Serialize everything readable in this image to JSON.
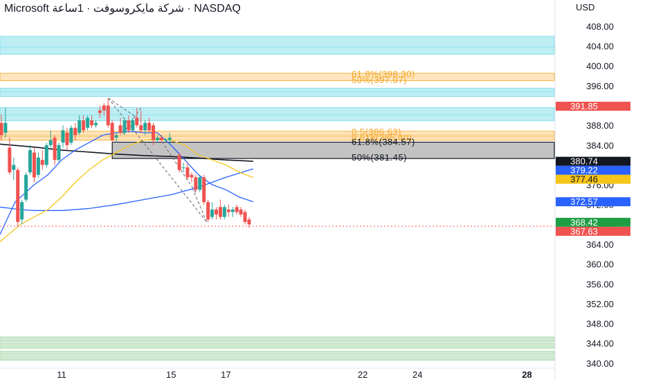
{
  "header": {
    "title": "Microsoft شركة مايكروسوفت · 1ساعة · NASDAQ",
    "currency": "USD"
  },
  "colors": {
    "up": "#26a69a",
    "down": "#ef5350",
    "cyan_zone": "#b2ebf2",
    "orange_zone": "#ffe0b2",
    "green_zone": "#c8e6c9",
    "gray_zone": "#bdbdbd",
    "fib_orange": "#f5a623",
    "ma_black": "#131722",
    "ma_blue": "#2962ff",
    "ma_yellow": "#f5c518",
    "current_price_line": "#ef5350"
  },
  "chart_data": {
    "type": "candlestick",
    "ylim": [
      339.0,
      410.5
    ],
    "xlim": [
      8.75,
      29.0
    ],
    "y_ticks": [
      "408.00",
      "404.00",
      "400.00",
      "396.00",
      "392.00",
      "388.00",
      "384.00",
      "380.00",
      "376.00",
      "372.00",
      "368.00",
      "364.00",
      "360.00",
      "356.00",
      "352.00",
      "348.00",
      "344.00",
      "340.00"
    ],
    "x_ticks": [
      {
        "label": "11",
        "x": 11,
        "bold": false
      },
      {
        "label": "15",
        "x": 15,
        "bold": false
      },
      {
        "label": "17",
        "x": 17,
        "bold": false
      },
      {
        "label": "22",
        "x": 22,
        "bold": false
      },
      {
        "label": "24",
        "x": 24,
        "bold": false
      },
      {
        "label": "28",
        "x": 28,
        "bold": true
      }
    ],
    "candles": [
      {
        "x": 8.8,
        "o": 388.5,
        "h": 390.2,
        "l": 385.0,
        "c": 386.0
      },
      {
        "x": 8.95,
        "o": 386.5,
        "h": 391.5,
        "l": 385.5,
        "c": 388.5
      },
      {
        "x": 9.1,
        "o": 383.5,
        "h": 385.5,
        "l": 378.0,
        "c": 378.5
      },
      {
        "x": 9.25,
        "o": 379.0,
        "h": 381.5,
        "l": 377.0,
        "c": 380.0
      },
      {
        "x": 9.4,
        "o": 379.0,
        "h": 379.5,
        "l": 367.5,
        "c": 368.5
      },
      {
        "x": 9.55,
        "o": 369.0,
        "h": 373.0,
        "l": 368.0,
        "c": 372.5
      },
      {
        "x": 9.7,
        "o": 373.0,
        "h": 378.5,
        "l": 372.5,
        "c": 378.0
      },
      {
        "x": 9.85,
        "o": 378.5,
        "h": 384.0,
        "l": 378.0,
        "c": 383.0
      },
      {
        "x": 10.0,
        "o": 382.5,
        "h": 383.5,
        "l": 376.5,
        "c": 377.5
      },
      {
        "x": 10.15,
        "o": 378.0,
        "h": 382.5,
        "l": 377.5,
        "c": 381.5
      },
      {
        "x": 10.3,
        "o": 381.0,
        "h": 383.0,
        "l": 379.0,
        "c": 380.0
      },
      {
        "x": 10.45,
        "o": 380.0,
        "h": 384.5,
        "l": 379.5,
        "c": 384.0
      },
      {
        "x": 10.6,
        "o": 384.0,
        "h": 387.0,
        "l": 383.5,
        "c": 385.0
      },
      {
        "x": 10.75,
        "o": 385.5,
        "h": 386.0,
        "l": 380.0,
        "c": 381.0
      },
      {
        "x": 10.9,
        "o": 381.0,
        "h": 384.5,
        "l": 380.5,
        "c": 384.0
      },
      {
        "x": 11.05,
        "o": 384.5,
        "h": 388.0,
        "l": 383.5,
        "c": 387.0
      },
      {
        "x": 11.2,
        "o": 386.5,
        "h": 387.5,
        "l": 383.0,
        "c": 384.0
      },
      {
        "x": 11.35,
        "o": 384.5,
        "h": 388.0,
        "l": 384.0,
        "c": 387.5
      },
      {
        "x": 11.5,
        "o": 387.5,
        "h": 388.5,
        "l": 385.0,
        "c": 386.0
      },
      {
        "x": 11.65,
        "o": 386.5,
        "h": 390.0,
        "l": 386.0,
        "c": 389.0
      },
      {
        "x": 11.8,
        "o": 389.0,
        "h": 390.0,
        "l": 386.5,
        "c": 387.0
      },
      {
        "x": 11.95,
        "o": 387.5,
        "h": 390.0,
        "l": 387.0,
        "c": 389.5
      },
      {
        "x": 12.1,
        "o": 389.0,
        "h": 390.0,
        "l": 387.5,
        "c": 388.0
      },
      {
        "x": 12.25,
        "o": 388.0,
        "h": 389.0,
        "l": 387.5,
        "c": 388.5
      },
      {
        "x": 12.4,
        "o": 391.0,
        "h": 392.0,
        "l": 389.5,
        "c": 390.5
      },
      {
        "x": 12.55,
        "o": 392.0,
        "h": 392.5,
        "l": 390.0,
        "c": 391.0
      },
      {
        "x": 12.7,
        "o": 392.0,
        "h": 393.5,
        "l": 387.5,
        "c": 388.0
      },
      {
        "x": 12.85,
        "o": 388.5,
        "h": 389.0,
        "l": 384.5,
        "c": 385.0
      },
      {
        "x": 13.0,
        "o": 385.5,
        "h": 386.5,
        "l": 384.5,
        "c": 386.0
      },
      {
        "x": 13.15,
        "o": 388.0,
        "h": 389.5,
        "l": 386.0,
        "c": 386.5
      },
      {
        "x": 13.3,
        "o": 386.5,
        "h": 389.5,
        "l": 386.0,
        "c": 389.0
      },
      {
        "x": 13.45,
        "o": 389.0,
        "h": 390.0,
        "l": 386.5,
        "c": 387.0
      },
      {
        "x": 13.6,
        "o": 387.0,
        "h": 389.5,
        "l": 386.5,
        "c": 389.0
      },
      {
        "x": 13.75,
        "o": 389.5,
        "h": 391.5,
        "l": 387.5,
        "c": 388.0
      },
      {
        "x": 13.9,
        "o": 388.0,
        "h": 391.0,
        "l": 386.5,
        "c": 387.0
      },
      {
        "x": 14.05,
        "o": 387.0,
        "h": 389.0,
        "l": 386.0,
        "c": 388.5
      },
      {
        "x": 14.2,
        "o": 388.5,
        "h": 389.5,
        "l": 386.5,
        "c": 387.0
      },
      {
        "x": 14.35,
        "o": 388.0,
        "h": 388.5,
        "l": 384.0,
        "c": 385.0
      },
      {
        "x": 14.5,
        "o": 385.0,
        "h": 386.0,
        "l": 384.5,
        "c": 385.5
      },
      {
        "x": 14.65,
        "o": 385.5,
        "h": 386.0,
        "l": 384.5,
        "c": 385.0
      },
      {
        "x": 14.8,
        "o": 385.0,
        "h": 385.5,
        "l": 384.5,
        "c": 385.2
      },
      {
        "x": 14.95,
        "o": 385.0,
        "h": 386.5,
        "l": 384.0,
        "c": 385.5
      },
      {
        "x": 15.3,
        "o": 382.0,
        "h": 382.5,
        "l": 378.5,
        "c": 379.0
      },
      {
        "x": 15.45,
        "o": 379.5,
        "h": 380.5,
        "l": 378.5,
        "c": 379.5
      },
      {
        "x": 15.6,
        "o": 379.5,
        "h": 380.5,
        "l": 377.0,
        "c": 377.5
      },
      {
        "x": 15.75,
        "o": 378.0,
        "h": 378.5,
        "l": 376.5,
        "c": 377.5
      },
      {
        "x": 15.9,
        "o": 377.5,
        "h": 378.0,
        "l": 374.5,
        "c": 375.0
      },
      {
        "x": 16.05,
        "o": 375.0,
        "h": 378.0,
        "l": 374.5,
        "c": 377.5
      },
      {
        "x": 16.2,
        "o": 377.5,
        "h": 378.0,
        "l": 372.0,
        "c": 372.5
      },
      {
        "x": 16.35,
        "o": 372.5,
        "h": 373.0,
        "l": 368.5,
        "c": 369.0
      },
      {
        "x": 16.5,
        "o": 369.5,
        "h": 372.5,
        "l": 369.0,
        "c": 371.0
      },
      {
        "x": 16.65,
        "o": 371.0,
        "h": 371.5,
        "l": 369.0,
        "c": 370.0
      },
      {
        "x": 16.8,
        "o": 371.5,
        "h": 373.0,
        "l": 369.0,
        "c": 369.5
      },
      {
        "x": 16.95,
        "o": 369.5,
        "h": 372.0,
        "l": 369.0,
        "c": 371.5
      },
      {
        "x": 17.1,
        "o": 371.0,
        "h": 372.0,
        "l": 369.5,
        "c": 370.5
      },
      {
        "x": 17.25,
        "o": 370.5,
        "h": 371.5,
        "l": 369.5,
        "c": 371.0
      },
      {
        "x": 17.4,
        "o": 371.5,
        "h": 372.0,
        "l": 370.0,
        "c": 370.5
      },
      {
        "x": 17.55,
        "o": 371.0,
        "h": 371.5,
        "l": 369.5,
        "c": 370.0
      },
      {
        "x": 17.7,
        "o": 370.5,
        "h": 371.0,
        "l": 368.0,
        "c": 368.5
      },
      {
        "x": 17.85,
        "o": 369.0,
        "h": 369.5,
        "l": 367.3,
        "c": 368.0
      }
    ],
    "zones": [
      {
        "color": "cyan",
        "ymin": 403.8,
        "ymax": 406.0
      },
      {
        "color": "cyan",
        "ymin": 402.3,
        "ymax": 403.8
      },
      {
        "color": "orange",
        "ymin": 397.0,
        "ymax": 398.5
      },
      {
        "color": "cyan",
        "ymin": 394.8,
        "ymax": 395.5
      },
      {
        "color": "cyan",
        "ymin": 393.8,
        "ymax": 394.6
      },
      {
        "color": "cyan",
        "ymin": 390.2,
        "ymax": 391.6
      },
      {
        "color": "cyan",
        "ymin": 388.9,
        "ymax": 390.0
      },
      {
        "color": "orange",
        "ymin": 386.0,
        "ymax": 386.8
      },
      {
        "color": "orange",
        "ymin": 385.0,
        "ymax": 385.7
      },
      {
        "color": "green",
        "ymin": 344.3,
        "ymax": 345.3
      },
      {
        "color": "green",
        "ymin": 343.0,
        "ymax": 344.0
      },
      {
        "color": "green",
        "ymin": 341.6,
        "ymax": 342.4
      },
      {
        "color": "green",
        "ymin": 340.6,
        "ymax": 341.3
      }
    ],
    "gray_box": {
      "x_start": 12.85,
      "ymin": 381.3,
      "ymax": 384.6
    },
    "fib_labels": [
      {
        "text": "61.8%(398.30)",
        "y": 398.3,
        "style": "orange"
      },
      {
        "text": "50%(397.07)",
        "y": 397.07,
        "style": "orange"
      },
      {
        "text": "0.5(386.63)",
        "y": 386.63,
        "style": "orange"
      },
      {
        "text": "0.618(385.40)",
        "y": 385.4,
        "style": "orange"
      },
      {
        "text": "61.8%(384.57)",
        "y": 384.57,
        "style": "dark"
      },
      {
        "text": "50%(381.45)",
        "y": 381.45,
        "style": "dark"
      }
    ],
    "ma_lines": [
      {
        "name": "",
        "color": "black",
        "points": [
          [
            8.75,
            384.2
          ],
          [
            10.0,
            383.6
          ],
          [
            11.0,
            383.0
          ],
          [
            12.0,
            382.6
          ],
          [
            13.0,
            382.2
          ],
          [
            14.0,
            381.9
          ],
          [
            15.0,
            381.7
          ],
          [
            16.0,
            381.4
          ],
          [
            17.0,
            381.0
          ],
          [
            18.0,
            380.74
          ]
        ]
      },
      {
        "name": "",
        "color": "blue",
        "points": [
          [
            8.75,
            371.5
          ],
          [
            9.5,
            371.0
          ],
          [
            10.0,
            370.8
          ],
          [
            11.0,
            370.8
          ],
          [
            12.0,
            371.2
          ],
          [
            13.0,
            372.0
          ],
          [
            14.0,
            373.0
          ],
          [
            15.0,
            374.0
          ],
          [
            16.0,
            375.5
          ],
          [
            17.0,
            377.5
          ],
          [
            18.0,
            379.22
          ]
        ]
      },
      {
        "name": "",
        "color": "blue",
        "points": [
          [
            8.75,
            366.0
          ],
          [
            9.3,
            372.5
          ],
          [
            10.0,
            376.0
          ],
          [
            10.5,
            378.0
          ],
          [
            11.0,
            381.0
          ],
          [
            11.5,
            383.0
          ],
          [
            12.0,
            384.5
          ],
          [
            12.5,
            386.0
          ],
          [
            13.0,
            386.5
          ],
          [
            13.5,
            386.8
          ],
          [
            14.0,
            386.5
          ],
          [
            14.5,
            386.5
          ],
          [
            15.0,
            384.0
          ],
          [
            15.5,
            381.0
          ],
          [
            16.0,
            378.0
          ],
          [
            16.5,
            376.0
          ],
          [
            17.0,
            375.0
          ],
          [
            17.5,
            373.5
          ],
          [
            18.0,
            372.57
          ]
        ]
      },
      {
        "name": "",
        "color": "yellow",
        "points": [
          [
            8.75,
            364.5
          ],
          [
            9.5,
            368.0
          ],
          [
            10.5,
            371.0
          ],
          [
            11.0,
            373.5
          ],
          [
            11.5,
            376.5
          ],
          [
            12.0,
            379.0
          ],
          [
            12.5,
            381.0
          ],
          [
            13.0,
            382.5
          ],
          [
            13.5,
            384.0
          ],
          [
            14.0,
            385.0
          ],
          [
            14.5,
            385.2
          ],
          [
            15.0,
            385.0
          ],
          [
            15.5,
            384.0
          ],
          [
            16.0,
            382.0
          ],
          [
            16.5,
            381.0
          ],
          [
            17.0,
            380.0
          ],
          [
            17.5,
            378.5
          ],
          [
            18.0,
            377.46
          ]
        ]
      }
    ],
    "dashed_lines": [
      [
        [
          12.7,
          393.5
        ],
        [
          16.3,
          368.5
        ]
      ],
      [
        [
          12.7,
          393.5
        ],
        [
          13.9,
          389.0
        ]
      ],
      [
        [
          13.9,
          391.5
        ],
        [
          13.2,
          386.0
        ]
      ],
      [
        [
          15.9,
          374.5
        ],
        [
          14.5,
          386.0
        ]
      ],
      [
        [
          16.3,
          368.5
        ],
        [
          15.8,
          375.0
        ]
      ]
    ],
    "current_price": 367.63,
    "price_tags": [
      {
        "label": "391.85",
        "value": 391.85,
        "bg": "#ef5350",
        "fg": "#ffffff"
      },
      {
        "label": "380.74",
        "value": 380.74,
        "bg": "#131722",
        "fg": "#ffffff"
      },
      {
        "label": "379.22",
        "value": 379.22,
        "bg": "#2962ff",
        "fg": "#ffffff"
      },
      {
        "label": "377.46",
        "value": 377.46,
        "bg": "#f5c518",
        "fg": "#131722"
      },
      {
        "label": "372.57",
        "value": 372.57,
        "bg": "#2962ff",
        "fg": "#ffffff"
      },
      {
        "label": "368.42",
        "value": 368.42,
        "bg": "#1e9e45",
        "fg": "#ffffff"
      },
      {
        "label": "367.63",
        "value": 367.63,
        "bg": "#ef5350",
        "fg": "#ffffff"
      }
    ]
  }
}
